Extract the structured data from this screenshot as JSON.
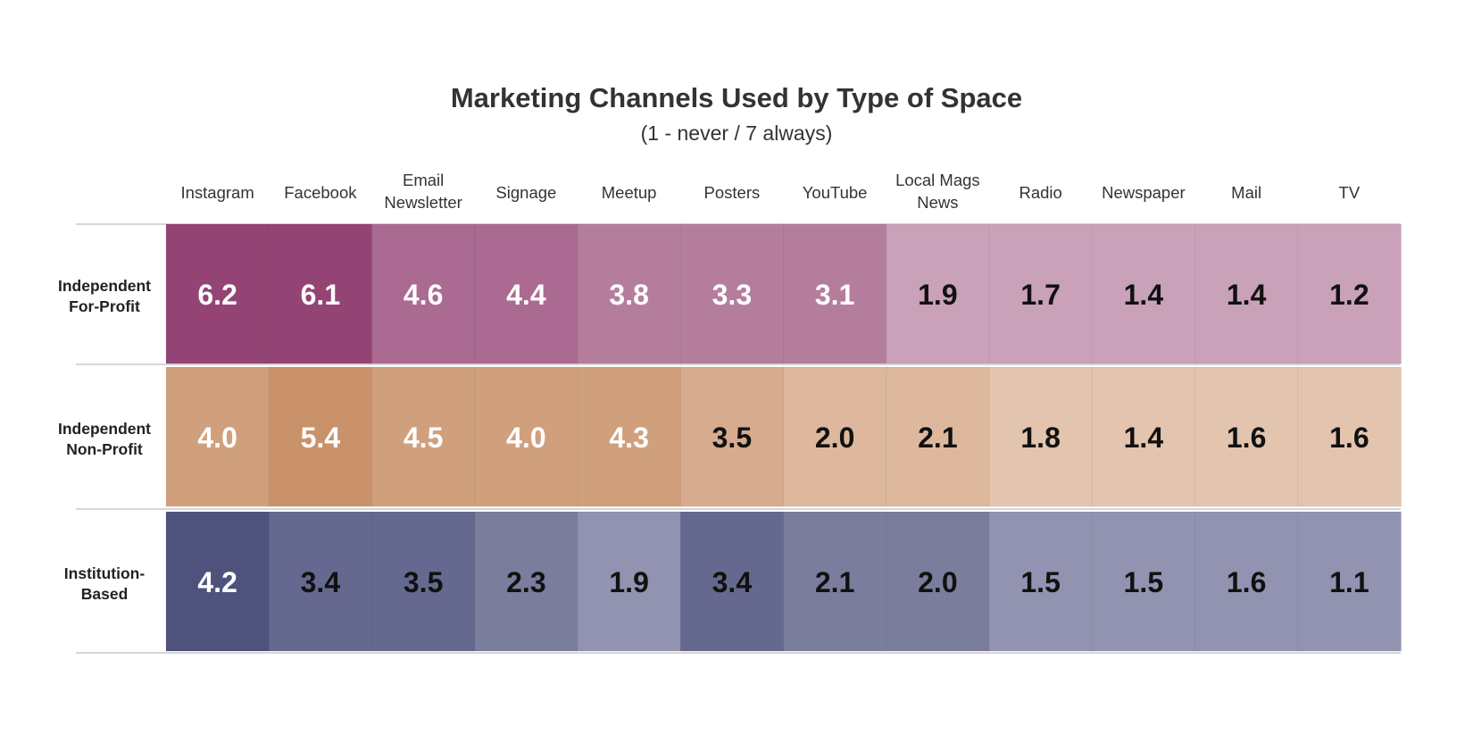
{
  "chart_data": {
    "type": "heatmap",
    "title": "Marketing Channels Used by Type of Space",
    "subtitle": "(1 - never / 7 always)",
    "columns": [
      [
        "Instagram"
      ],
      [
        "Facebook"
      ],
      [
        "Email",
        "Newsletter"
      ],
      [
        "Signage"
      ],
      [
        "Meetup"
      ],
      [
        "Posters"
      ],
      [
        "YouTube"
      ],
      [
        "Local Mags",
        "News"
      ],
      [
        "Radio"
      ],
      [
        "Newspaper"
      ],
      [
        "Mail"
      ],
      [
        "TV"
      ]
    ],
    "rows": [
      {
        "label": [
          "Independent",
          "For-Profit"
        ],
        "values": [
          "6.2",
          "6.1",
          "4.6",
          "4.4",
          "3.8",
          "3.3",
          "3.1",
          "1.9",
          "1.7",
          "1.4",
          "1.4",
          "1.2"
        ],
        "colors": [
          "#944474",
          "#944474",
          "#aa6a91",
          "#aa6a91",
          "#b57d9c",
          "#b57d9c",
          "#b57d9c",
          "#c9a1b9",
          "#c9a1b9",
          "#c9a1b9",
          "#c9a1b9",
          "#c9a1b9"
        ],
        "text_colors": [
          "#ffffff",
          "#ffffff",
          "#ffffff",
          "#ffffff",
          "#ffffff",
          "#ffffff",
          "#ffffff",
          "#111111",
          "#111111",
          "#111111",
          "#111111",
          "#111111"
        ]
      },
      {
        "label": [
          "Independent",
          "Non-Profit"
        ],
        "values": [
          "4.0",
          "5.4",
          "4.5",
          "4.0",
          "4.3",
          "3.5",
          "2.0",
          "2.1",
          "1.8",
          "1.4",
          "1.6",
          "1.6"
        ],
        "colors": [
          "#d0a07d",
          "#c9926b",
          "#d0a07d",
          "#d0a07d",
          "#d0a07d",
          "#d7ab8d",
          "#ddb89c",
          "#ddb89c",
          "#e3c4ae",
          "#e3c4ae",
          "#e3c4ae",
          "#e3c4ae"
        ],
        "text_colors": [
          "#ffffff",
          "#ffffff",
          "#ffffff",
          "#ffffff",
          "#ffffff",
          "#111111",
          "#111111",
          "#111111",
          "#111111",
          "#111111",
          "#111111",
          "#111111"
        ]
      },
      {
        "label": [
          "Institution-",
          "Based"
        ],
        "values": [
          "4.2",
          "3.4",
          "3.5",
          "2.3",
          "1.9",
          "3.4",
          "2.1",
          "2.0",
          "1.5",
          "1.5",
          "1.6",
          "1.1"
        ],
        "colors": [
          "#4f527c",
          "#66698f",
          "#66698f",
          "#7b7d9d",
          "#9193b0",
          "#66698f",
          "#7b7d9d",
          "#7b7d9d",
          "#9193b0",
          "#9193b0",
          "#9193b0",
          "#9193b0"
        ],
        "text_colors": [
          "#ffffff",
          "#111111",
          "#111111",
          "#111111",
          "#111111",
          "#111111",
          "#111111",
          "#111111",
          "#111111",
          "#111111",
          "#111111",
          "#111111"
        ]
      }
    ]
  }
}
